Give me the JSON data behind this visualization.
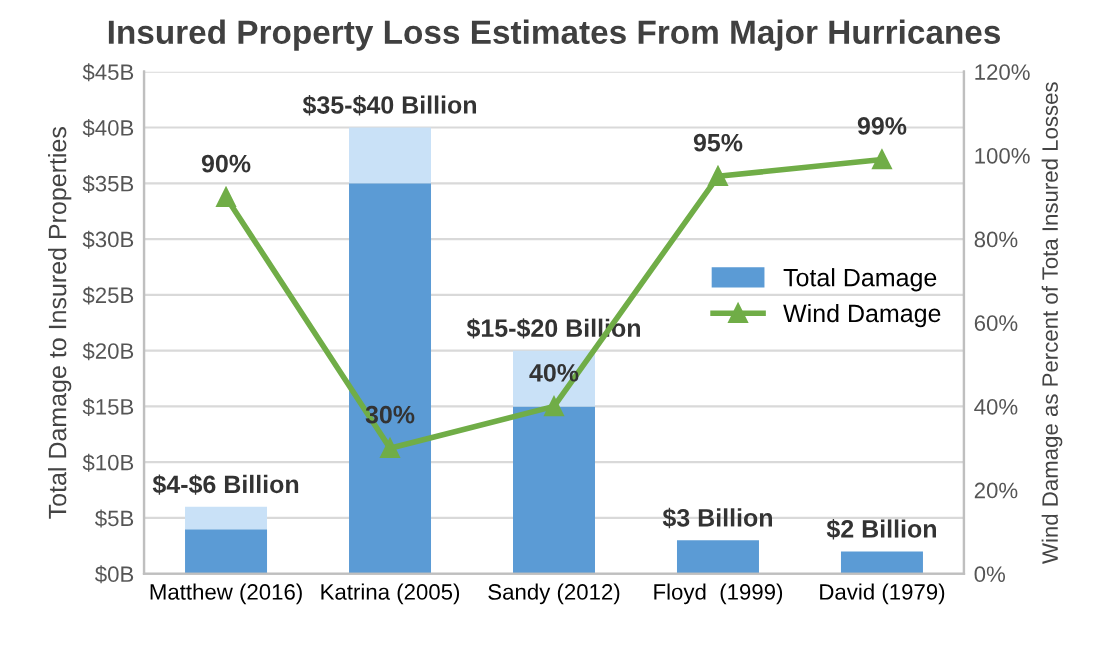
{
  "chart_data": {
    "type": "bar",
    "title": "Insured Property Loss Estimates From Major Hurricanes",
    "categories": [
      "Matthew (2016)",
      "Katrina (2005)",
      "Sandy (2012)",
      "Floyd  (1999)",
      "David (1979)"
    ],
    "stacked": true,
    "series": [
      {
        "name": "Total Damage",
        "color": "#5b9bd5",
        "values": [
          4,
          35,
          15,
          3,
          2
        ]
      },
      {
        "color": "#c9e1f7",
        "values": [
          2,
          5,
          5,
          0,
          0
        ]
      },
      {
        "name": "Wind Damage",
        "type": "line",
        "axis": "y2",
        "color": "#70ad47",
        "marker": "triangle",
        "values": [
          90,
          30,
          40,
          95,
          99
        ],
        "value_labels": [
          "90%",
          "30%",
          "40%",
          "95%",
          "99%"
        ]
      }
    ],
    "totals": [
      "$4-$6 Billion",
      "$35-$40 Billion",
      "$15-$20 Billion",
      "$3 Billion",
      "$2 Billion"
    ],
    "ylabel": "Total Damage to Insured Properties",
    "y2label": "Wind Damage as Percent of Tota Insured Losses",
    "ylim": [
      0,
      45
    ],
    "yticks": [
      {
        "value": 0,
        "label": "$0B"
      },
      {
        "value": 5,
        "label": "$5B"
      },
      {
        "value": 10,
        "label": "$10B"
      },
      {
        "value": 15,
        "label": "$15B"
      },
      {
        "value": 20,
        "label": "$20B"
      },
      {
        "value": 25,
        "label": "$25B"
      },
      {
        "value": 30,
        "label": "$30B"
      },
      {
        "value": 35,
        "label": "$35B"
      },
      {
        "value": 40,
        "label": "$40B"
      },
      {
        "value": 45,
        "label": "$45B"
      }
    ],
    "y2lim": [
      0,
      120
    ],
    "y2ticks": [
      {
        "value": 0,
        "label": "0%"
      },
      {
        "value": 20,
        "label": "20%"
      },
      {
        "value": 40,
        "label": "40%"
      },
      {
        "value": 60,
        "label": "60%"
      },
      {
        "value": 80,
        "label": "80%"
      },
      {
        "value": 100,
        "label": "100%"
      },
      {
        "value": 120,
        "label": "120%"
      }
    ],
    "grid": "y",
    "legend": "right"
  }
}
